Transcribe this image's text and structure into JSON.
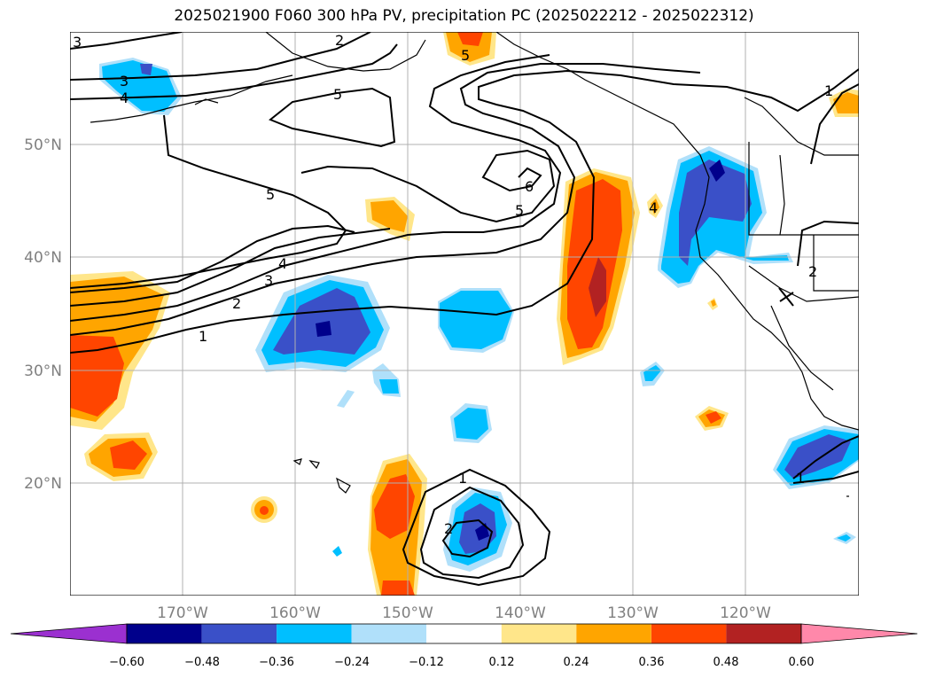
{
  "title": "2025021900 F060 300 hPa PV, precipitation PC (2025022212 - 2025022312)",
  "map": {
    "lat_labels": [
      "50°N",
      "40°N",
      "30°N",
      "20°N"
    ],
    "lon_labels": [
      "170°W",
      "160°W",
      "150°W",
      "140°W",
      "130°W",
      "120°W"
    ],
    "pv_contour_labels": [
      "3",
      "2",
      "3",
      "4",
      "5",
      "5",
      "5",
      "4",
      "3",
      "2",
      "1",
      "6",
      "5",
      "4",
      "1",
      "2",
      "1",
      "1",
      "2"
    ]
  },
  "colorbar": {
    "ticks": [
      "−0.60",
      "−0.48",
      "−0.36",
      "−0.24",
      "−0.12",
      "0.12",
      "0.24",
      "0.36",
      "0.48",
      "0.60"
    ],
    "colors": [
      "#9b30d0",
      "#00008b",
      "#3a50c8",
      "#00bfff",
      "#b0e0fa",
      "#ffffff",
      "#ffe68a",
      "#ffa500",
      "#ff4500",
      "#b22222",
      "#ff88aa"
    ]
  }
}
